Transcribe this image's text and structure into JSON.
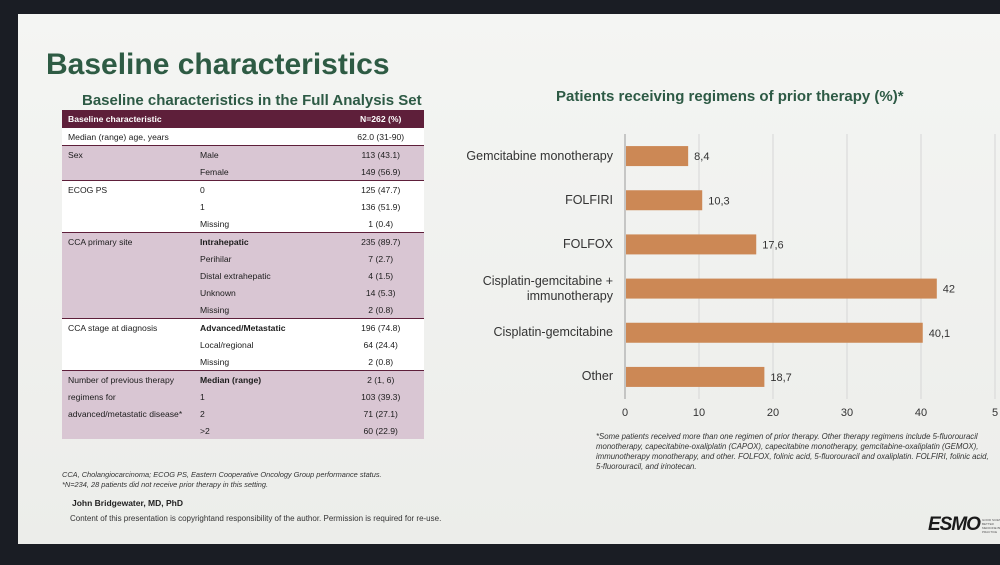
{
  "slide": {
    "title": "Baseline characteristics",
    "table_title": "Baseline characteristics in the Full Analysis Set",
    "chart_title": "Patients receiving regimens of prior therapy (%)*"
  },
  "table": {
    "header": {
      "characteristic": "Baseline characteristic",
      "value": "N=262 (%)"
    },
    "rows": [
      {
        "c1": "Median (range) age, years",
        "c2": "",
        "v": "62.0 (31-90)",
        "group": 0,
        "start": true
      },
      {
        "c1": "Sex",
        "c2": "Male",
        "v": "113 (43.1)",
        "group": 1,
        "start": true
      },
      {
        "c1": "",
        "c2": "Female",
        "v": "149 (56.9)",
        "group": 1
      },
      {
        "c1": "ECOG PS",
        "c2": "0",
        "v": "125 (47.7)",
        "group": 2,
        "start": true
      },
      {
        "c1": "",
        "c2": "1",
        "v": "136 (51.9)",
        "group": 2
      },
      {
        "c1": "",
        "c2": "Missing",
        "v": "1 (0.4)",
        "group": 2
      },
      {
        "c1": "CCA primary site",
        "c2": "Intrahepatic",
        "v": "235 (89.7)",
        "group": 3,
        "start": true,
        "bold": true
      },
      {
        "c1": "",
        "c2": "Perihilar",
        "v": "7 (2.7)",
        "group": 3
      },
      {
        "c1": "",
        "c2": "Distal extrahepatic",
        "v": "4 (1.5)",
        "group": 3
      },
      {
        "c1": "",
        "c2": "Unknown",
        "v": "14 (5.3)",
        "group": 3
      },
      {
        "c1": "",
        "c2": "Missing",
        "v": "2 (0.8)",
        "group": 3
      },
      {
        "c1": "CCA stage at diagnosis",
        "c2": "Advanced/Metastatic",
        "v": "196 (74.8)",
        "group": 4,
        "start": true,
        "bold": true
      },
      {
        "c1": "",
        "c2": "Local/regional",
        "v": "64 (24.4)",
        "group": 4
      },
      {
        "c1": "",
        "c2": "Missing",
        "v": "2 (0.8)",
        "group": 4
      },
      {
        "c1": "Number of previous therapy",
        "c2": "Median (range)",
        "v": "2 (1, 6)",
        "group": 5,
        "start": true,
        "bold": true
      },
      {
        "c1": "regimens for",
        "c2": "1",
        "v": "103 (39.3)",
        "group": 5
      },
      {
        "c1": "advanced/metastatic disease*",
        "c2": "2",
        "v": "71 (27.1)",
        "group": 5
      },
      {
        "c1": "",
        "c2": ">2",
        "v": "60 (22.9)",
        "group": 5
      }
    ]
  },
  "notes": {
    "line1": "CCA, Cholangiocarcinoma; ECOG PS, Eastern Cooperative Oncology Group performance status.",
    "line2": "*N=234, 28 patients did not receive prior therapy in this setting."
  },
  "presenter": "John Bridgewater, MD, PhD",
  "copyright": "Content of this presentation is copyrightand responsibility of the author. Permission is required for re-use.",
  "chart_footnote": "*Some patients received more than one regimen of prior therapy. Other therapy regimens include 5-fluorouracil monotherapy, capecitabine-oxaliplatin (CAPOX), capecitabine monotherapy, gemcitabine-oxaliplatin (GEMOX), immunotherapy monotherapy, and other. FOLFOX, folinic acid, 5-fluorouracil and oxaliplatin. FOLFIRI, folinic acid, 5-fluorouracil, and irinotecan.",
  "logo": {
    "text": "ESMO",
    "tagline": "GOOD SCIENCE BETTER MEDICINE BEST PRACTICE"
  },
  "chart_data": {
    "type": "bar",
    "orientation": "horizontal",
    "title": "Patients receiving regimens of prior therapy (%)*",
    "categories": [
      "Gemcitabine monotherapy",
      "FOLFIRI",
      "FOLFOX",
      "Cisplatin-gemcitabine + immunotherapy",
      "Cisplatin-gemcitabine",
      "Other"
    ],
    "values": [
      8.4,
      10.3,
      17.6,
      42,
      40.1,
      18.7
    ],
    "value_labels": [
      "8,4",
      "10,3",
      "17,6",
      "42",
      "40,1",
      "18,7"
    ],
    "xticks": [
      "0",
      "10",
      "20",
      "30",
      "40",
      "5"
    ],
    "xlim": [
      0,
      50
    ],
    "grid": true,
    "bar_color": "#cc8855"
  }
}
